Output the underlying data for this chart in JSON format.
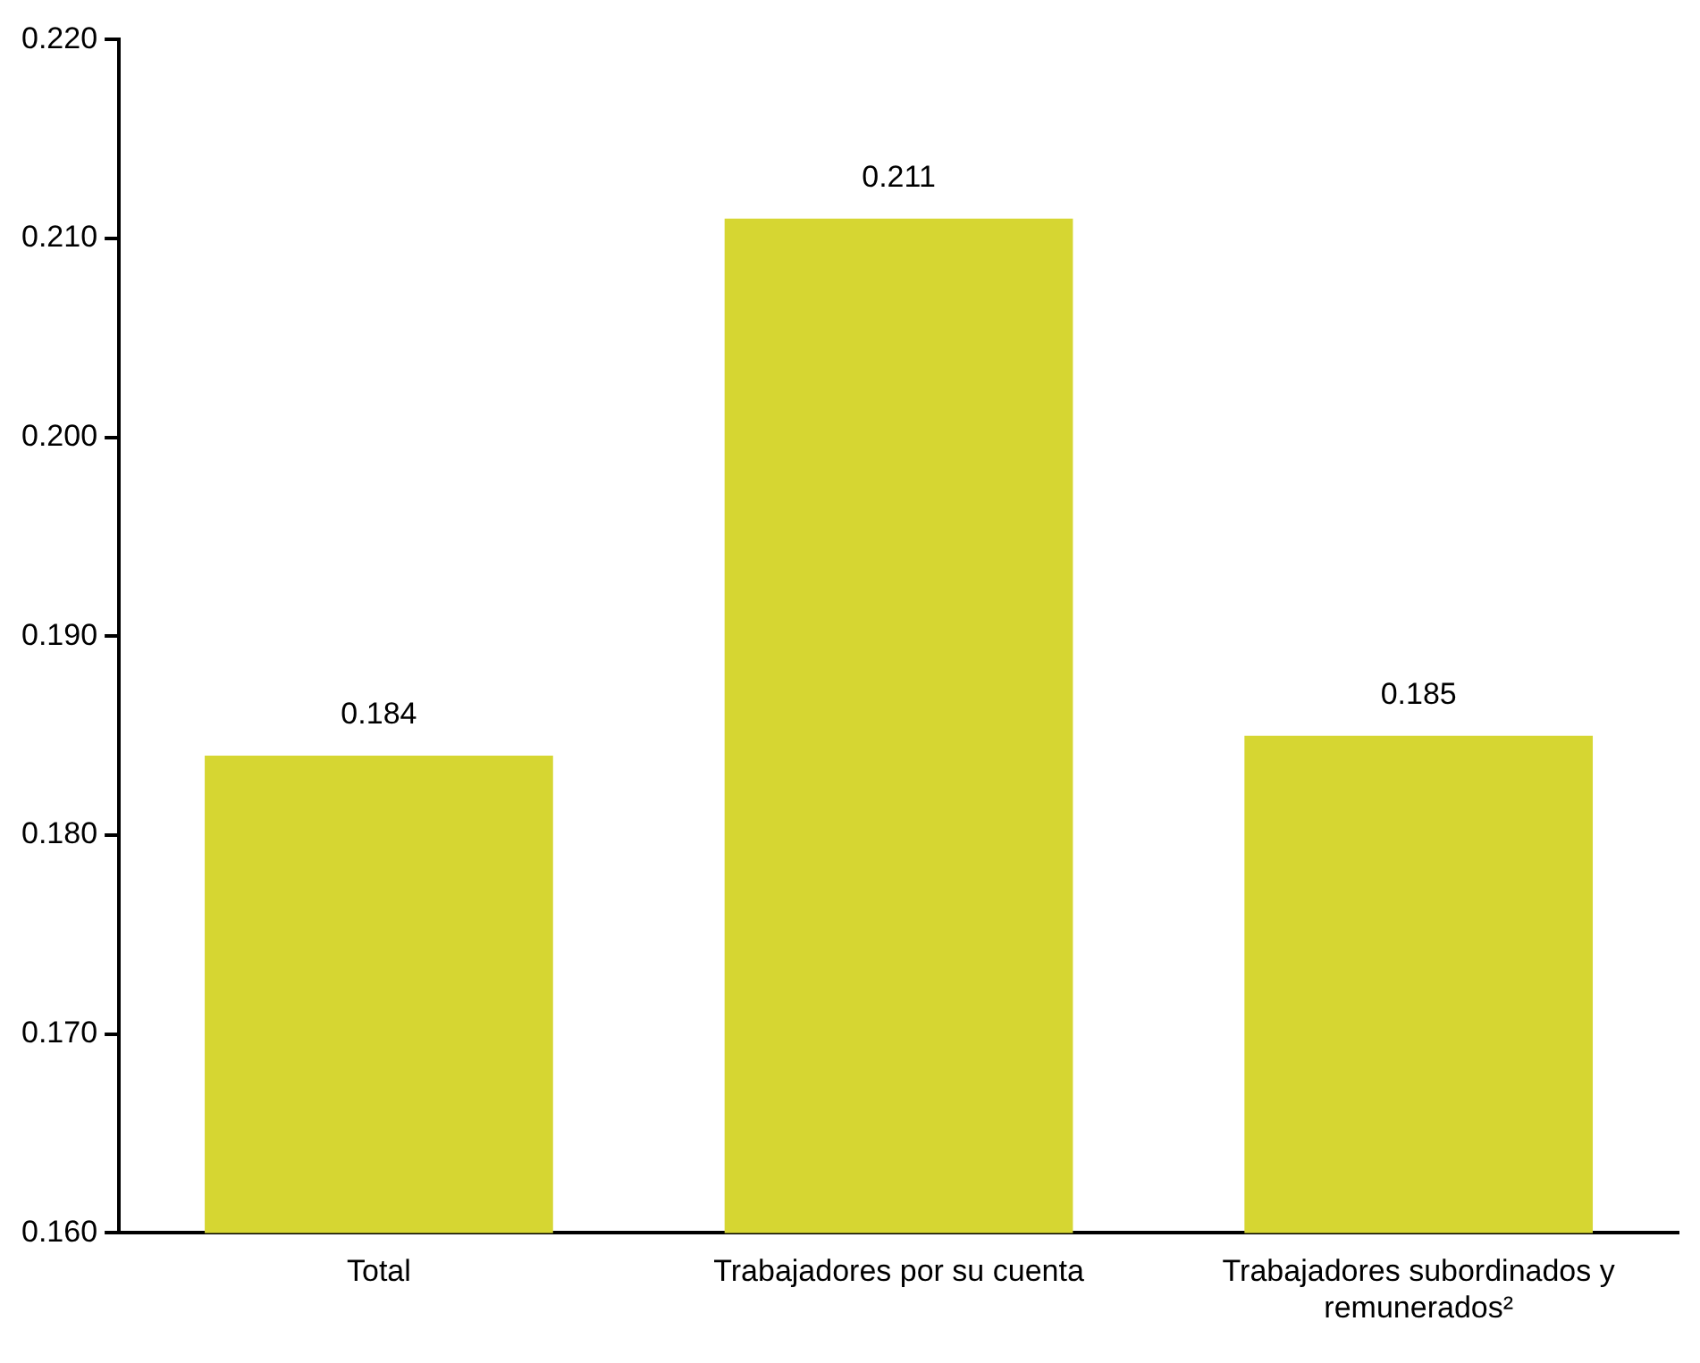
{
  "chart_data": {
    "type": "bar",
    "categories": [
      "Total",
      "Trabajadores por su cuenta",
      "Trabajadores subordinados y remunerados²"
    ],
    "values": [
      0.184,
      0.211,
      0.185
    ],
    "color": "#d6d632",
    "ylim": [
      0.16,
      0.22
    ],
    "yticks": [
      {
        "value": 0.16,
        "label": "0.160"
      },
      {
        "value": 0.17,
        "label": "0.170"
      },
      {
        "value": 0.18,
        "label": "0.180"
      },
      {
        "value": 0.19,
        "label": "0.190"
      },
      {
        "value": 0.2,
        "label": "0.200"
      },
      {
        "value": 0.21,
        "label": "0.210"
      },
      {
        "value": 0.22,
        "label": "0.220"
      }
    ],
    "data_labels": true,
    "grid": false,
    "legend": false
  }
}
